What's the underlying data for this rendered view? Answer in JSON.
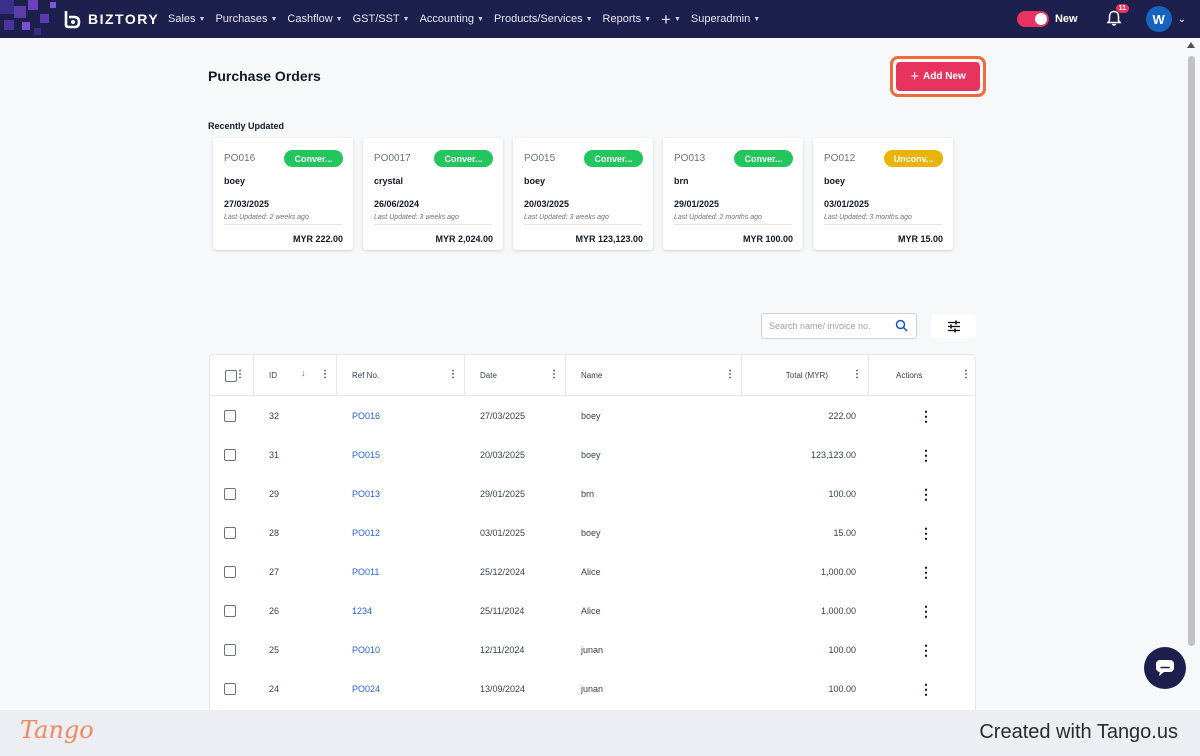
{
  "header": {
    "brand": "BIZTORY",
    "nav": [
      {
        "label": "Sales"
      },
      {
        "label": "Purchases"
      },
      {
        "label": "Cashflow"
      },
      {
        "label": "GST/SST"
      },
      {
        "label": "Accounting"
      },
      {
        "label": "Products/Services"
      },
      {
        "label": "Reports"
      },
      {
        "label": "+"
      },
      {
        "label": "Superadmin"
      }
    ],
    "toggle_label": "New",
    "notification_count": "11",
    "avatar_initial": "W"
  },
  "page": {
    "title": "Purchase Orders",
    "add_button": "Add New",
    "recent_label": "Recently Updated"
  },
  "recent": [
    {
      "id": "PO016",
      "status": "Conver...",
      "status_color": "#22c55e",
      "name": "boey",
      "date": "27/03/2025",
      "updated": "Last Updated: 2 weeks ago",
      "total": "MYR 222.00"
    },
    {
      "id": "PO0017",
      "status": "Conver...",
      "status_color": "#22c55e",
      "name": "crystal",
      "date": "26/06/2024",
      "updated": "Last Updated: 3 weeks ago",
      "total": "MYR 2,024.00"
    },
    {
      "id": "PO015",
      "status": "Conver...",
      "status_color": "#22c55e",
      "name": "boey",
      "date": "20/03/2025",
      "updated": "Last Updated: 3 weeks ago",
      "total": "MYR 123,123.00"
    },
    {
      "id": "PO013",
      "status": "Conver...",
      "status_color": "#22c55e",
      "name": "brn",
      "date": "29/01/2025",
      "updated": "Last Updated: 2 months ago",
      "total": "MYR 100.00"
    },
    {
      "id": "PO012",
      "status": "Unconv...",
      "status_color": "#eab308",
      "name": "boey",
      "date": "03/01/2025",
      "updated": "Last Updated: 3 months ago",
      "total": "MYR 15.00"
    }
  ],
  "search": {
    "placeholder": "Search name/ invoice no."
  },
  "table": {
    "columns": [
      "ID",
      "Ref No.",
      "Date",
      "Name",
      "Total (MYR)",
      "Actions"
    ],
    "rows": [
      {
        "id": "32",
        "ref": "PO016",
        "date": "27/03/2025",
        "name": "boey",
        "total": "222.00"
      },
      {
        "id": "31",
        "ref": "PO015",
        "date": "20/03/2025",
        "name": "boey",
        "total": "123,123.00"
      },
      {
        "id": "29",
        "ref": "PO013",
        "date": "29/01/2025",
        "name": "brn",
        "total": "100.00"
      },
      {
        "id": "28",
        "ref": "PO012",
        "date": "03/01/2025",
        "name": "boey",
        "total": "15.00"
      },
      {
        "id": "27",
        "ref": "PO011",
        "date": "25/12/2024",
        "name": "Alice",
        "total": "1,000.00"
      },
      {
        "id": "26",
        "ref": "1234",
        "date": "25/11/2024",
        "name": "Alice",
        "total": "1,000.00"
      },
      {
        "id": "25",
        "ref": "PO010",
        "date": "12/11/2024",
        "name": "junan",
        "total": "100.00"
      },
      {
        "id": "24",
        "ref": "PO024",
        "date": "13/09/2024",
        "name": "junan",
        "total": "100.00"
      }
    ]
  },
  "footer": {
    "logo": "Tango",
    "created": "Created with Tango.us"
  },
  "colors": {
    "nav_bg": "#1d1f4d",
    "accent": "#e8335f",
    "highlight": "#f26a3c",
    "link": "#2563eb"
  }
}
